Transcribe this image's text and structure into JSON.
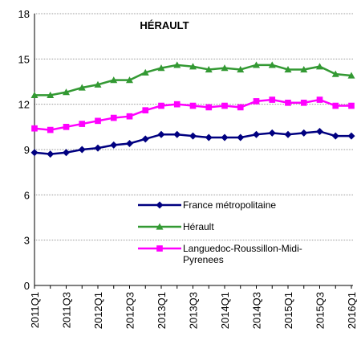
{
  "chart_data": {
    "type": "line",
    "title": "HÉRAULT",
    "categories": [
      "2011Q1",
      null,
      "2011Q3",
      null,
      "2012Q1",
      null,
      "2012Q3",
      null,
      "2013Q1",
      null,
      "2013Q3",
      null,
      "2014Q1",
      null,
      "2014Q3",
      null,
      "2015Q1",
      null,
      "2015Q3",
      null,
      "2016Q1"
    ],
    "series": [
      {
        "name": "France métropolitaine",
        "color": "#000080",
        "marker": "diamond",
        "values": [
          8.8,
          8.7,
          8.8,
          9.0,
          9.1,
          9.3,
          9.4,
          9.7,
          10.0,
          10.0,
          9.9,
          9.8,
          9.8,
          9.8,
          10.0,
          10.1,
          10.0,
          10.1,
          10.2,
          9.9,
          9.9
        ]
      },
      {
        "name": "Hérault",
        "color": "#339933",
        "marker": "triangle",
        "values": [
          12.6,
          12.6,
          12.8,
          13.1,
          13.3,
          13.6,
          13.6,
          14.1,
          14.4,
          14.6,
          14.5,
          14.3,
          14.4,
          14.3,
          14.6,
          14.6,
          14.3,
          14.3,
          14.5,
          14.0,
          13.9
        ]
      },
      {
        "name": "Languedoc-Roussillon-Midi-Pyrenees",
        "color": "#ff00ff",
        "marker": "square",
        "values": [
          10.4,
          10.3,
          10.5,
          10.7,
          10.9,
          11.1,
          11.2,
          11.6,
          11.9,
          12.0,
          11.9,
          11.8,
          11.9,
          11.8,
          12.2,
          12.3,
          12.1,
          12.1,
          12.3,
          11.9,
          11.9
        ]
      }
    ],
    "ylim": [
      0,
      18
    ],
    "yticks": [
      0,
      3,
      6,
      9,
      12,
      15,
      18
    ],
    "grid": true
  }
}
